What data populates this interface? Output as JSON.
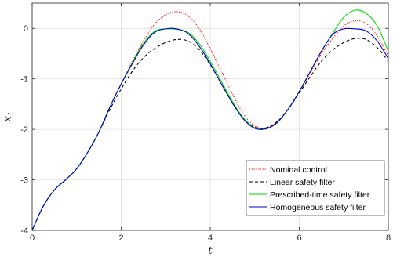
{
  "chart_data": {
    "type": "line",
    "xlabel": "t",
    "ylabel": "x",
    "ylabel_sub": "1",
    "xlim": [
      0,
      8
    ],
    "ylim": [
      -4,
      0.5
    ],
    "xticks": [
      0,
      2,
      4,
      6,
      8
    ],
    "yticks": [
      0,
      -1,
      -2,
      -3,
      -4
    ],
    "xtick_labels": [
      "0",
      "2",
      "4",
      "6",
      "8"
    ],
    "ytick_labels": [
      "0",
      "-1",
      "-2",
      "-3",
      "-4"
    ],
    "grid": true,
    "legend_position": "bottom-right",
    "series": [
      {
        "name": "Nominal control",
        "color": "#ff0000",
        "style": "dotted",
        "x": [
          0,
          0.25,
          0.5,
          0.75,
          1.0,
          1.25,
          1.5,
          1.75,
          2.0,
          2.25,
          2.5,
          2.75,
          3.0,
          3.25,
          3.5,
          3.75,
          4.0,
          4.25,
          4.5,
          4.75,
          5.0,
          5.25,
          5.5,
          5.75,
          6.0,
          6.25,
          6.5,
          6.75,
          7.0,
          7.25,
          7.5,
          7.75,
          8.0
        ],
        "y": [
          -4.0,
          -3.52,
          -3.2,
          -3.0,
          -2.78,
          -2.45,
          -2.05,
          -1.55,
          -1.1,
          -0.65,
          -0.25,
          0.08,
          0.27,
          0.33,
          0.25,
          0.0,
          -0.4,
          -0.85,
          -1.3,
          -1.7,
          -1.93,
          -1.97,
          -1.85,
          -1.6,
          -1.25,
          -0.88,
          -0.5,
          -0.2,
          0.05,
          0.15,
          0.1,
          -0.15,
          -0.55
        ]
      },
      {
        "name": "Linear safety filter",
        "color": "#000000",
        "style": "dashed",
        "x": [
          0,
          0.25,
          0.5,
          0.75,
          1.0,
          1.25,
          1.5,
          1.75,
          2.0,
          2.25,
          2.5,
          2.75,
          3.0,
          3.25,
          3.5,
          3.75,
          4.0,
          4.25,
          4.5,
          4.75,
          5.0,
          5.25,
          5.5,
          5.75,
          6.0,
          6.25,
          6.5,
          6.75,
          7.0,
          7.25,
          7.5,
          7.75,
          8.0
        ],
        "y": [
          -4.0,
          -3.52,
          -3.2,
          -3.0,
          -2.78,
          -2.45,
          -2.05,
          -1.6,
          -1.2,
          -0.85,
          -0.58,
          -0.4,
          -0.28,
          -0.22,
          -0.25,
          -0.42,
          -0.72,
          -1.1,
          -1.48,
          -1.78,
          -1.96,
          -1.97,
          -1.85,
          -1.6,
          -1.28,
          -0.95,
          -0.65,
          -0.43,
          -0.28,
          -0.2,
          -0.22,
          -0.38,
          -0.65
        ]
      },
      {
        "name": "Prescribed-time safety filter",
        "color": "#00dd00",
        "style": "solid",
        "x": [
          0,
          0.25,
          0.5,
          0.75,
          1.0,
          1.25,
          1.5,
          1.75,
          2.0,
          2.25,
          2.5,
          2.75,
          3.0,
          3.25,
          3.5,
          3.75,
          4.0,
          4.25,
          4.5,
          4.75,
          5.0,
          5.25,
          5.5,
          5.75,
          6.0,
          6.25,
          6.5,
          6.75,
          7.0,
          7.25,
          7.5,
          7.75,
          8.0
        ],
        "y": [
          -4.0,
          -3.52,
          -3.2,
          -3.0,
          -2.78,
          -2.45,
          -2.05,
          -1.55,
          -1.1,
          -0.68,
          -0.3,
          -0.06,
          -0.01,
          -0.02,
          -0.08,
          -0.3,
          -0.65,
          -1.05,
          -1.45,
          -1.78,
          -1.97,
          -1.99,
          -1.87,
          -1.6,
          -1.25,
          -0.85,
          -0.45,
          -0.1,
          0.22,
          0.36,
          0.3,
          0.05,
          -0.45
        ]
      },
      {
        "name": "Homogeneous safety filter",
        "color": "#0000cc",
        "style": "solid",
        "x": [
          0,
          0.25,
          0.5,
          0.75,
          1.0,
          1.25,
          1.5,
          1.75,
          2.0,
          2.25,
          2.5,
          2.75,
          3.0,
          3.25,
          3.5,
          3.75,
          4.0,
          4.25,
          4.5,
          4.75,
          5.0,
          5.25,
          5.5,
          5.75,
          6.0,
          6.25,
          6.5,
          6.75,
          7.0,
          7.25,
          7.5,
          7.75,
          8.0
        ],
        "y": [
          -4.0,
          -3.52,
          -3.2,
          -3.0,
          -2.78,
          -2.45,
          -2.05,
          -1.55,
          -1.1,
          -0.7,
          -0.33,
          -0.08,
          -0.01,
          -0.01,
          -0.1,
          -0.35,
          -0.7,
          -1.1,
          -1.48,
          -1.8,
          -1.98,
          -1.99,
          -1.87,
          -1.6,
          -1.25,
          -0.85,
          -0.45,
          -0.12,
          -0.01,
          -0.01,
          -0.05,
          -0.25,
          -0.6
        ]
      }
    ]
  }
}
